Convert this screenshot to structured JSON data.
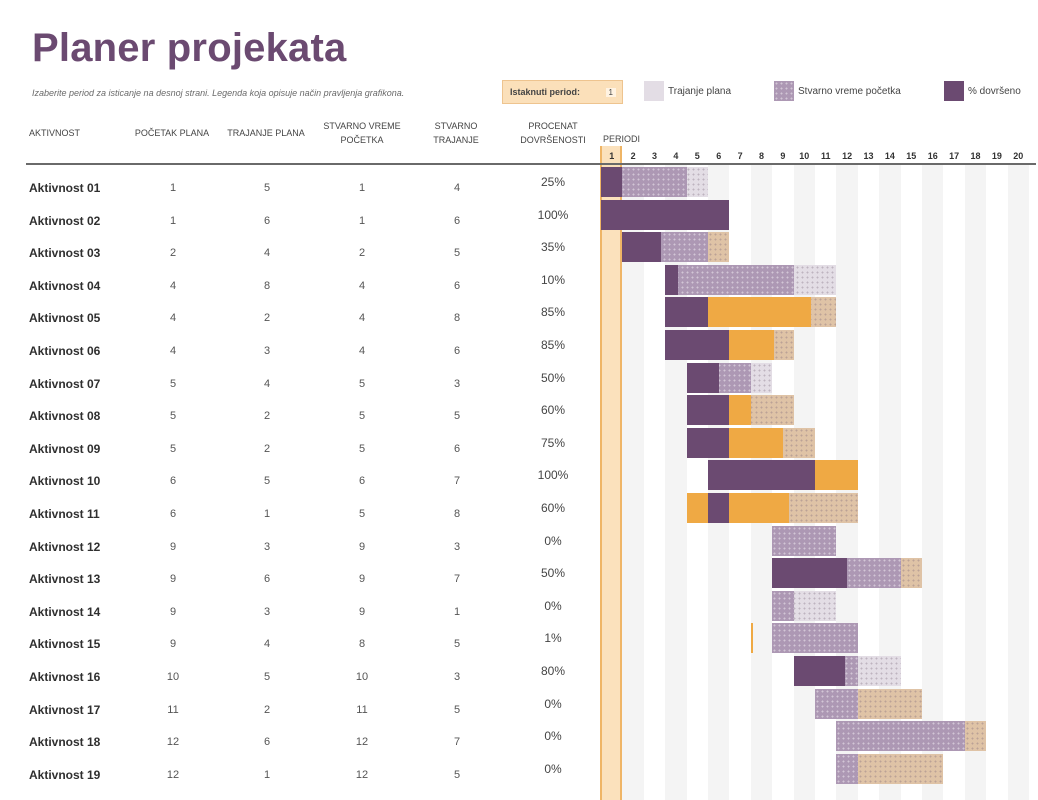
{
  "title": "Planer projekata",
  "helper_text": "Izaberite period za isticanje na desnoj strani.  Legenda koja opisuje način pravljenja grafikona.",
  "highlight": {
    "label": "Istaknuti period:",
    "value": "1"
  },
  "legend": [
    {
      "label": "Trajanje plana",
      "color": "#e3dde5"
    },
    {
      "label": "Stvarno vreme početka",
      "color": "#ad98b4"
    },
    {
      "label": "% dovršeno",
      "color": "#6b4a71"
    }
  ],
  "colors": {
    "plan": "#e3dde5",
    "actual": "#ad98b4",
    "complete": "#6b4a71",
    "beyond_plan": "#efa944",
    "actual_beyond": "#dfc3a6",
    "highlight": "#fbe1bc"
  },
  "columns": {
    "activity": "AKTIVNOST",
    "plan_start": "POČETAK PLANA",
    "plan_duration": "TRAJANJE PLANA",
    "actual_start_l1": "STVARNO VREME",
    "actual_start_l2": "POČETKA",
    "actual_duration_l1": "STVARNO",
    "actual_duration_l2": "TRAJANJE",
    "percent_l1": "PROCENAT",
    "percent_l2": "DOVRŠENOSTI",
    "periods": "PERIODI"
  },
  "periods": [
    "1",
    "2",
    "3",
    "4",
    "5",
    "6",
    "7",
    "8",
    "9",
    "10",
    "11",
    "12",
    "13",
    "14",
    "15",
    "16",
    "17",
    "18",
    "19",
    "20"
  ],
  "activities": [
    {
      "name": "Aktivnost 01",
      "plan_start": "1",
      "plan_duration": "5",
      "actual_start": "1",
      "actual_duration": "4",
      "percent": "25%"
    },
    {
      "name": "Aktivnost 02",
      "plan_start": "1",
      "plan_duration": "6",
      "actual_start": "1",
      "actual_duration": "6",
      "percent": "100%"
    },
    {
      "name": "Aktivnost 03",
      "plan_start": "2",
      "plan_duration": "4",
      "actual_start": "2",
      "actual_duration": "5",
      "percent": "35%"
    },
    {
      "name": "Aktivnost 04",
      "plan_start": "4",
      "plan_duration": "8",
      "actual_start": "4",
      "actual_duration": "6",
      "percent": "10%"
    },
    {
      "name": "Aktivnost 05",
      "plan_start": "4",
      "plan_duration": "2",
      "actual_start": "4",
      "actual_duration": "8",
      "percent": "85%"
    },
    {
      "name": "Aktivnost 06",
      "plan_start": "4",
      "plan_duration": "3",
      "actual_start": "4",
      "actual_duration": "6",
      "percent": "85%"
    },
    {
      "name": "Aktivnost 07",
      "plan_start": "5",
      "plan_duration": "4",
      "actual_start": "5",
      "actual_duration": "3",
      "percent": "50%"
    },
    {
      "name": "Aktivnost 08",
      "plan_start": "5",
      "plan_duration": "2",
      "actual_start": "5",
      "actual_duration": "5",
      "percent": "60%"
    },
    {
      "name": "Aktivnost 09",
      "plan_start": "5",
      "plan_duration": "2",
      "actual_start": "5",
      "actual_duration": "6",
      "percent": "75%"
    },
    {
      "name": "Aktivnost 10",
      "plan_start": "6",
      "plan_duration": "5",
      "actual_start": "6",
      "actual_duration": "7",
      "percent": "100%"
    },
    {
      "name": "Aktivnost 11",
      "plan_start": "6",
      "plan_duration": "1",
      "actual_start": "5",
      "actual_duration": "8",
      "percent": "60%"
    },
    {
      "name": "Aktivnost 12",
      "plan_start": "9",
      "plan_duration": "3",
      "actual_start": "9",
      "actual_duration": "3",
      "percent": "0%"
    },
    {
      "name": "Aktivnost 13",
      "plan_start": "9",
      "plan_duration": "6",
      "actual_start": "9",
      "actual_duration": "7",
      "percent": "50%"
    },
    {
      "name": "Aktivnost 14",
      "plan_start": "9",
      "plan_duration": "3",
      "actual_start": "9",
      "actual_duration": "1",
      "percent": "0%"
    },
    {
      "name": "Aktivnost 15",
      "plan_start": "9",
      "plan_duration": "4",
      "actual_start": "8",
      "actual_duration": "5",
      "percent": "1%"
    },
    {
      "name": "Aktivnost 16",
      "plan_start": "10",
      "plan_duration": "5",
      "actual_start": "10",
      "actual_duration": "3",
      "percent": "80%"
    },
    {
      "name": "Aktivnost 17",
      "plan_start": "11",
      "plan_duration": "2",
      "actual_start": "11",
      "actual_duration": "5",
      "percent": "0%"
    },
    {
      "name": "Aktivnost 18",
      "plan_start": "12",
      "plan_duration": "6",
      "actual_start": "12",
      "actual_duration": "7",
      "percent": "0%"
    },
    {
      "name": "Aktivnost 19",
      "plan_start": "12",
      "plan_duration": "1",
      "actual_start": "12",
      "actual_duration": "5",
      "percent": "0%"
    }
  ]
}
